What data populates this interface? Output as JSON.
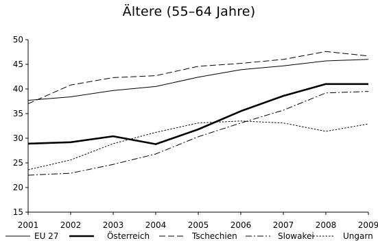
{
  "chart_data": {
    "type": "line",
    "title": "Ältere (55–64 Jahre)",
    "xlabel": "",
    "ylabel": "",
    "x": [
      2001,
      2002,
      2003,
      2004,
      2005,
      2006,
      2007,
      2008,
      2009
    ],
    "ylim": [
      15,
      50
    ],
    "yticks": [
      15,
      20,
      25,
      30,
      35,
      40,
      45,
      50
    ],
    "grid": false,
    "legend_position": "bottom",
    "series": [
      {
        "name": "EU 27",
        "style": "solid-thin",
        "values": [
          37.7,
          38.4,
          39.7,
          40.5,
          42.4,
          43.9,
          44.7,
          45.7,
          46.0
        ]
      },
      {
        "name": "Österreich",
        "style": "solid-thick",
        "values": [
          28.9,
          29.2,
          30.4,
          28.8,
          31.8,
          35.5,
          38.6,
          41.0,
          41.0
        ]
      },
      {
        "name": "Tschechien",
        "style": "dashed",
        "values": [
          37.0,
          40.8,
          42.3,
          42.7,
          44.6,
          45.2,
          46.0,
          47.6,
          46.7
        ]
      },
      {
        "name": "Slowakei",
        "style": "dashdot",
        "values": [
          22.5,
          22.9,
          24.7,
          26.8,
          30.3,
          33.1,
          35.7,
          39.2,
          39.5
        ]
      },
      {
        "name": "Ungarn",
        "style": "dotted",
        "values": [
          23.6,
          25.6,
          28.9,
          31.2,
          33.1,
          33.5,
          33.1,
          31.4,
          32.9
        ]
      }
    ]
  }
}
